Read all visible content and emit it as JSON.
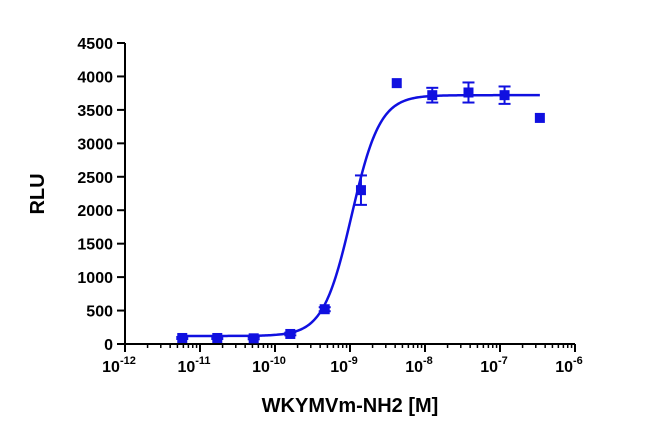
{
  "chart_data": {
    "type": "scatter",
    "title": "",
    "xlabel": "WKYMVm-NH2 [M]",
    "ylabel": "RLU",
    "x_scale": "log10",
    "xlim": [
      1e-12,
      1e-06
    ],
    "ylim": [
      0,
      4500
    ],
    "y_ticks": [
      "0",
      "500",
      "1000",
      "1500",
      "2000",
      "2500",
      "3000",
      "3500",
      "4000",
      "4500"
    ],
    "x_ticks": [
      {
        "base": "10",
        "exp": "-12",
        "value": 1e-12
      },
      {
        "base": "10",
        "exp": "-11",
        "value": 1e-11
      },
      {
        "base": "10",
        "exp": "-10",
        "value": 1e-10
      },
      {
        "base": "10",
        "exp": "-9",
        "value": 1e-09
      },
      {
        "base": "10",
        "exp": "-8",
        "value": 1e-08
      },
      {
        "base": "10",
        "exp": "-7",
        "value": 1e-07
      },
      {
        "base": "10",
        "exp": "-6",
        "value": 1e-06
      }
    ],
    "grid": false,
    "legend": "none",
    "color": "#1010e0",
    "marker": "square",
    "series": [
      {
        "points": [
          {
            "x": 5.8e-12,
            "y": 90,
            "err": 15
          },
          {
            "x": 1.7e-11,
            "y": 90,
            "err": 15
          },
          {
            "x": 5.2e-11,
            "y": 85,
            "err": 15
          },
          {
            "x": 1.6e-10,
            "y": 150,
            "err": 20
          },
          {
            "x": 4.6e-10,
            "y": 520,
            "err": 30
          },
          {
            "x": 1.4e-09,
            "y": 2300,
            "err": 220
          },
          {
            "x": 4.2e-09,
            "y": 3900,
            "err": 0
          },
          {
            "x": 1.25e-08,
            "y": 3720,
            "err": 110
          },
          {
            "x": 3.8e-08,
            "y": 3760,
            "err": 150
          },
          {
            "x": 1.15e-07,
            "y": 3720,
            "err": 130
          },
          {
            "x": 3.4e-07,
            "y": 3380,
            "err": 0
          }
        ],
        "fit": {
          "model": "sigmoidal-dose-response",
          "bottom": 120,
          "top": 3720,
          "ec50": 1.05e-09,
          "hill": 2.3,
          "x_range": [
            5.8e-12,
            3.4e-07
          ]
        }
      }
    ]
  }
}
